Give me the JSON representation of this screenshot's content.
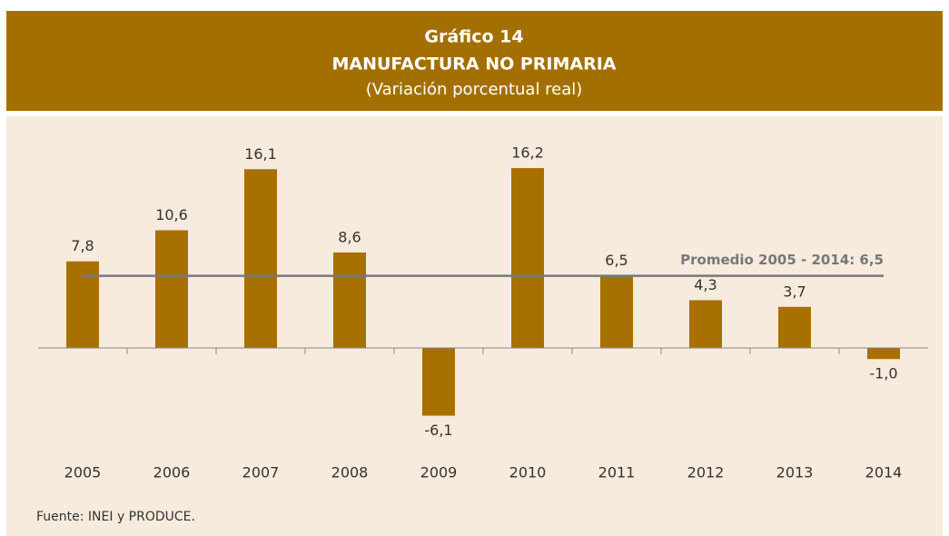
{
  "chart_data": {
    "type": "bar",
    "title": "Gráfico 14",
    "subtitle": "MANUFACTURA NO PRIMARIA",
    "unit_note": "(Variación porcentual real)",
    "categories": [
      "2005",
      "2006",
      "2007",
      "2008",
      "2009",
      "2010",
      "2011",
      "2012",
      "2013",
      "2014"
    ],
    "values": [
      7.8,
      10.6,
      16.1,
      8.6,
      -6.1,
      16.2,
      6.5,
      4.3,
      3.7,
      -1.0
    ],
    "value_labels": [
      "7,8",
      "10,6",
      "16,1",
      "8,6",
      "-6,1",
      "16,2",
      "6,5",
      "4,3",
      "3,7",
      "-1,0"
    ],
    "color": "#a87000",
    "ylim": [
      -10,
      20
    ],
    "average": {
      "label": "Promedio 2005 - 2014: 6,5",
      "value": 6.5,
      "color": "#77787b"
    },
    "source": "Fuente: INEI y PRODUCE."
  }
}
